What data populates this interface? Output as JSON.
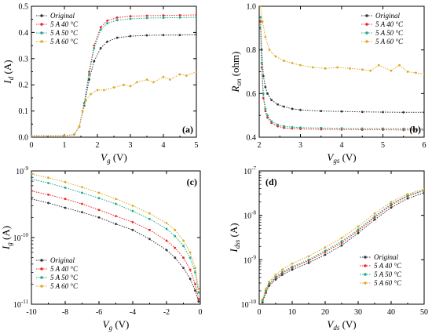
{
  "colors": {
    "original": "#333333",
    "c40": "#ee2222",
    "c50": "#1aa888",
    "c60": "#ddaa22"
  },
  "legend_labels": [
    "Original",
    "5 A  40 °C",
    "5 A  50 °C",
    "5 A  60 °C"
  ],
  "chart_data": [
    {
      "type": "line",
      "panel": "(a)",
      "xlabel_main": "V",
      "xlabel_sub": "g",
      "xlabel_unit": " (V)",
      "ylabel_main": "I",
      "ylabel_sub": "d",
      "ylabel_unit": " (A)",
      "xlim": [
        0,
        5
      ],
      "ylim": [
        0,
        0.5
      ],
      "yscale": "linear",
      "xticks": [
        0,
        1,
        2,
        3,
        4,
        5
      ],
      "yticks": [
        0.0,
        0.1,
        0.2,
        0.3,
        0.4,
        0.5
      ],
      "legend": "top-left",
      "series": [
        {
          "name": "Original",
          "color": "original",
          "x": [
            0,
            1.0,
            1.3,
            1.45,
            1.6,
            1.75,
            1.9,
            2.1,
            2.3,
            2.6,
            3.0,
            3.5,
            4.0,
            4.5,
            5.0
          ],
          "y": [
            0.005,
            0.005,
            0.01,
            0.04,
            0.12,
            0.22,
            0.29,
            0.34,
            0.365,
            0.38,
            0.386,
            0.389,
            0.39,
            0.39,
            0.392
          ]
        },
        {
          "name": "5 A  40 °C",
          "color": "c40",
          "x": [
            0,
            1.0,
            1.3,
            1.45,
            1.6,
            1.75,
            1.9,
            2.1,
            2.3,
            2.6,
            3.0,
            3.5,
            4.0,
            4.5,
            5.0
          ],
          "y": [
            0.005,
            0.005,
            0.01,
            0.04,
            0.13,
            0.25,
            0.35,
            0.42,
            0.445,
            0.457,
            0.462,
            0.464,
            0.465,
            0.466,
            0.467
          ]
        },
        {
          "name": "5 A  50 °C",
          "color": "c50",
          "x": [
            0,
            1.0,
            1.3,
            1.45,
            1.6,
            1.75,
            1.9,
            2.1,
            2.3,
            2.6,
            3.0,
            3.5,
            4.0,
            4.5,
            5.0
          ],
          "y": [
            0.005,
            0.005,
            0.01,
            0.04,
            0.13,
            0.24,
            0.34,
            0.41,
            0.435,
            0.447,
            0.452,
            0.455,
            0.456,
            0.457,
            0.458
          ]
        },
        {
          "name": "5 A  60 °C",
          "color": "c60",
          "x": [
            0,
            1.0,
            1.3,
            1.45,
            1.55,
            1.65,
            1.8,
            2.0,
            2.2,
            2.5,
            2.8,
            3.0,
            3.2,
            3.5,
            3.7,
            4.0,
            4.2,
            4.5,
            4.7,
            5.0
          ],
          "y": [
            0.005,
            0.005,
            0.01,
            0.04,
            0.1,
            0.14,
            0.165,
            0.18,
            0.18,
            0.19,
            0.2,
            0.195,
            0.21,
            0.22,
            0.21,
            0.23,
            0.22,
            0.24,
            0.235,
            0.25
          ]
        }
      ]
    },
    {
      "type": "line",
      "panel": "(b)",
      "xlabel_main": "V",
      "xlabel_sub": "gs",
      "xlabel_unit": " (V)",
      "ylabel_main": "R",
      "ylabel_sub": "on",
      "ylabel_unit": " (ohm)",
      "xlim": [
        2,
        6
      ],
      "ylim": [
        0.4,
        1.0
      ],
      "yscale": "linear",
      "xticks": [
        2,
        3,
        4,
        5,
        6
      ],
      "yticks": [
        0.4,
        0.6,
        0.8,
        1.0
      ],
      "legend": "top-right",
      "series": [
        {
          "name": "Original",
          "color": "original",
          "x": [
            2.03,
            2.06,
            2.1,
            2.15,
            2.2,
            2.3,
            2.45,
            2.6,
            2.8,
            3.0,
            3.5,
            4.0,
            4.5,
            5.0,
            5.5,
            6.0
          ],
          "y": [
            0.95,
            0.8,
            0.68,
            0.63,
            0.6,
            0.57,
            0.55,
            0.54,
            0.53,
            0.525,
            0.52,
            0.518,
            0.516,
            0.515,
            0.514,
            0.514
          ]
        },
        {
          "name": "5 A  40 °C",
          "color": "c40",
          "x": [
            2.03,
            2.06,
            2.1,
            2.15,
            2.2,
            2.3,
            2.45,
            2.6,
            2.8,
            3.0,
            3.5,
            4.0,
            4.5,
            5.0,
            5.5,
            6.0
          ],
          "y": [
            0.93,
            0.72,
            0.58,
            0.52,
            0.49,
            0.465,
            0.45,
            0.443,
            0.44,
            0.438,
            0.436,
            0.435,
            0.434,
            0.434,
            0.433,
            0.433
          ]
        },
        {
          "name": "5 A  50 °C",
          "color": "c50",
          "x": [
            2.03,
            2.06,
            2.1,
            2.15,
            2.2,
            2.3,
            2.45,
            2.6,
            2.8,
            3.0,
            3.5,
            4.0,
            4.5,
            5.0,
            5.5,
            6.0
          ],
          "y": [
            0.95,
            0.74,
            0.6,
            0.53,
            0.5,
            0.472,
            0.457,
            0.45,
            0.446,
            0.444,
            0.442,
            0.441,
            0.44,
            0.44,
            0.439,
            0.439
          ]
        },
        {
          "name": "5 A  60 °C",
          "color": "c60",
          "x": [
            2.03,
            2.08,
            2.15,
            2.25,
            2.4,
            2.6,
            2.8,
            3.0,
            3.3,
            3.6,
            3.9,
            4.2,
            4.5,
            4.7,
            4.9,
            5.2,
            5.4,
            5.6,
            5.8,
            6.0
          ],
          "y": [
            1.0,
            0.93,
            0.86,
            0.8,
            0.77,
            0.75,
            0.74,
            0.73,
            0.72,
            0.715,
            0.72,
            0.715,
            0.71,
            0.705,
            0.73,
            0.705,
            0.73,
            0.7,
            0.695,
            0.69
          ]
        }
      ]
    },
    {
      "type": "line",
      "panel": "(c)",
      "xlabel_main": "V",
      "xlabel_sub": "g",
      "xlabel_unit": " (V)",
      "ylabel_main": "I",
      "ylabel_sub": "g",
      "ylabel_unit": " (A)",
      "xlim": [
        -10,
        0
      ],
      "ylim": [
        1e-11,
        1e-09
      ],
      "yscale": "log",
      "xticks": [
        -10,
        -8,
        -6,
        -4,
        -2,
        0
      ],
      "yticks": [
        1e-11,
        1e-10,
        1e-09
      ],
      "legend": "bottom-left",
      "series": [
        {
          "name": "Original",
          "color": "original",
          "x": [
            -10,
            -9,
            -8,
            -7,
            -6,
            -5,
            -4,
            -3,
            -2,
            -1.5,
            -1,
            -0.6,
            -0.3,
            -0.1
          ],
          "y": [
            3.8e-10,
            3.3e-10,
            2.8e-10,
            2.4e-10,
            2e-10,
            1.6e-10,
            1.3e-10,
            9.5e-11,
            6.5e-11,
            5e-11,
            3.5e-11,
            2.4e-11,
            1.6e-11,
            1.1e-11
          ]
        },
        {
          "name": "5 A  40 °C",
          "color": "c40",
          "x": [
            -10,
            -9,
            -8,
            -7,
            -6,
            -5,
            -4,
            -3,
            -2,
            -1.5,
            -1,
            -0.6,
            -0.3,
            -0.1
          ],
          "y": [
            5e-10,
            4.4e-10,
            3.8e-10,
            3.2e-10,
            2.6e-10,
            2.1e-10,
            1.7e-10,
            1.3e-10,
            9e-11,
            7e-11,
            5e-11,
            3.3e-11,
            2e-11,
            1.2e-11
          ]
        },
        {
          "name": "5 A  50 °C",
          "color": "c50",
          "x": [
            -10,
            -9,
            -8,
            -7,
            -6,
            -5,
            -4,
            -3,
            -2,
            -1.5,
            -1,
            -0.6,
            -0.3,
            -0.1
          ],
          "y": [
            7.5e-10,
            6.6e-10,
            5.6e-10,
            4.7e-10,
            3.9e-10,
            3.2e-10,
            2.5e-10,
            1.9e-10,
            1.35e-10,
            1.05e-10,
            7.5e-11,
            5e-11,
            3e-11,
            1.5e-11
          ]
        },
        {
          "name": "5 A  60 °C",
          "color": "c60",
          "x": [
            -10,
            -9,
            -8,
            -7,
            -6,
            -5,
            -4,
            -3,
            -2,
            -1.5,
            -1,
            -0.6,
            -0.3,
            -0.1
          ],
          "y": [
            9e-10,
            7.9e-10,
            6.8e-10,
            5.7e-10,
            4.7e-10,
            3.8e-10,
            3e-10,
            2.3e-10,
            1.65e-10,
            1.3e-10,
            9e-11,
            6e-11,
            3.5e-11,
            1.7e-11
          ]
        }
      ]
    },
    {
      "type": "line",
      "panel": "(d)",
      "xlabel_main": "V",
      "xlabel_sub": "ds",
      "xlabel_unit": " (V)",
      "ylabel_main": "I",
      "ylabel_sub": "dss",
      "ylabel_unit": " (A)",
      "xlim": [
        0,
        50
      ],
      "ylim": [
        1e-10,
        1e-07
      ],
      "yscale": "log",
      "xticks": [
        0,
        10,
        20,
        30,
        40,
        50
      ],
      "yticks": [
        1e-10,
        1e-09,
        1e-08,
        1e-07
      ],
      "legend": "bottom-right",
      "series": [
        {
          "name": "Original",
          "color": "original",
          "x": [
            1,
            2,
            3,
            5,
            7,
            10,
            15,
            20,
            25,
            30,
            35,
            40,
            45,
            50
          ],
          "y": [
            1.1e-10,
            1.8e-10,
            2.6e-10,
            3.6e-10,
            4.6e-10,
            6e-10,
            8.5e-10,
            1.3e-09,
            2.1e-09,
            4e-09,
            8e-09,
            1.5e-08,
            2.4e-08,
            3.2e-08
          ]
        },
        {
          "name": "5 A  40 °C",
          "color": "c40",
          "x": [
            1,
            2,
            3,
            5,
            7,
            10,
            15,
            20,
            25,
            30,
            35,
            40,
            45,
            50
          ],
          "y": [
            1.2e-10,
            1.9e-10,
            2.8e-10,
            3.9e-10,
            5e-10,
            6.7e-10,
            9.5e-10,
            1.5e-09,
            2.4e-09,
            4.5e-09,
            9e-09,
            1.7e-08,
            2.7e-08,
            3.6e-08
          ]
        },
        {
          "name": "5 A  50 °C",
          "color": "c50",
          "x": [
            1,
            2,
            3,
            5,
            7,
            10,
            15,
            20,
            25,
            30,
            35,
            40,
            45,
            50
          ],
          "y": [
            1.2e-10,
            2e-10,
            2.9e-10,
            4.1e-10,
            5.3e-10,
            7e-10,
            1e-09,
            1.6e-09,
            2.6e-09,
            4.8e-09,
            9.5e-09,
            1.8e-08,
            2.8e-08,
            3.7e-08
          ]
        },
        {
          "name": "5 A  60 °C",
          "color": "c60",
          "x": [
            1,
            2,
            3,
            5,
            7,
            10,
            15,
            20,
            25,
            30,
            35,
            40,
            45,
            50
          ],
          "y": [
            1.3e-10,
            2.2e-10,
            3.2e-10,
            4.6e-10,
            6e-10,
            8.2e-10,
            1.2e-09,
            1.9e-09,
            3.1e-09,
            5.6e-09,
            1.1e-08,
            2e-08,
            3e-08,
            3.9e-08
          ]
        }
      ]
    }
  ]
}
